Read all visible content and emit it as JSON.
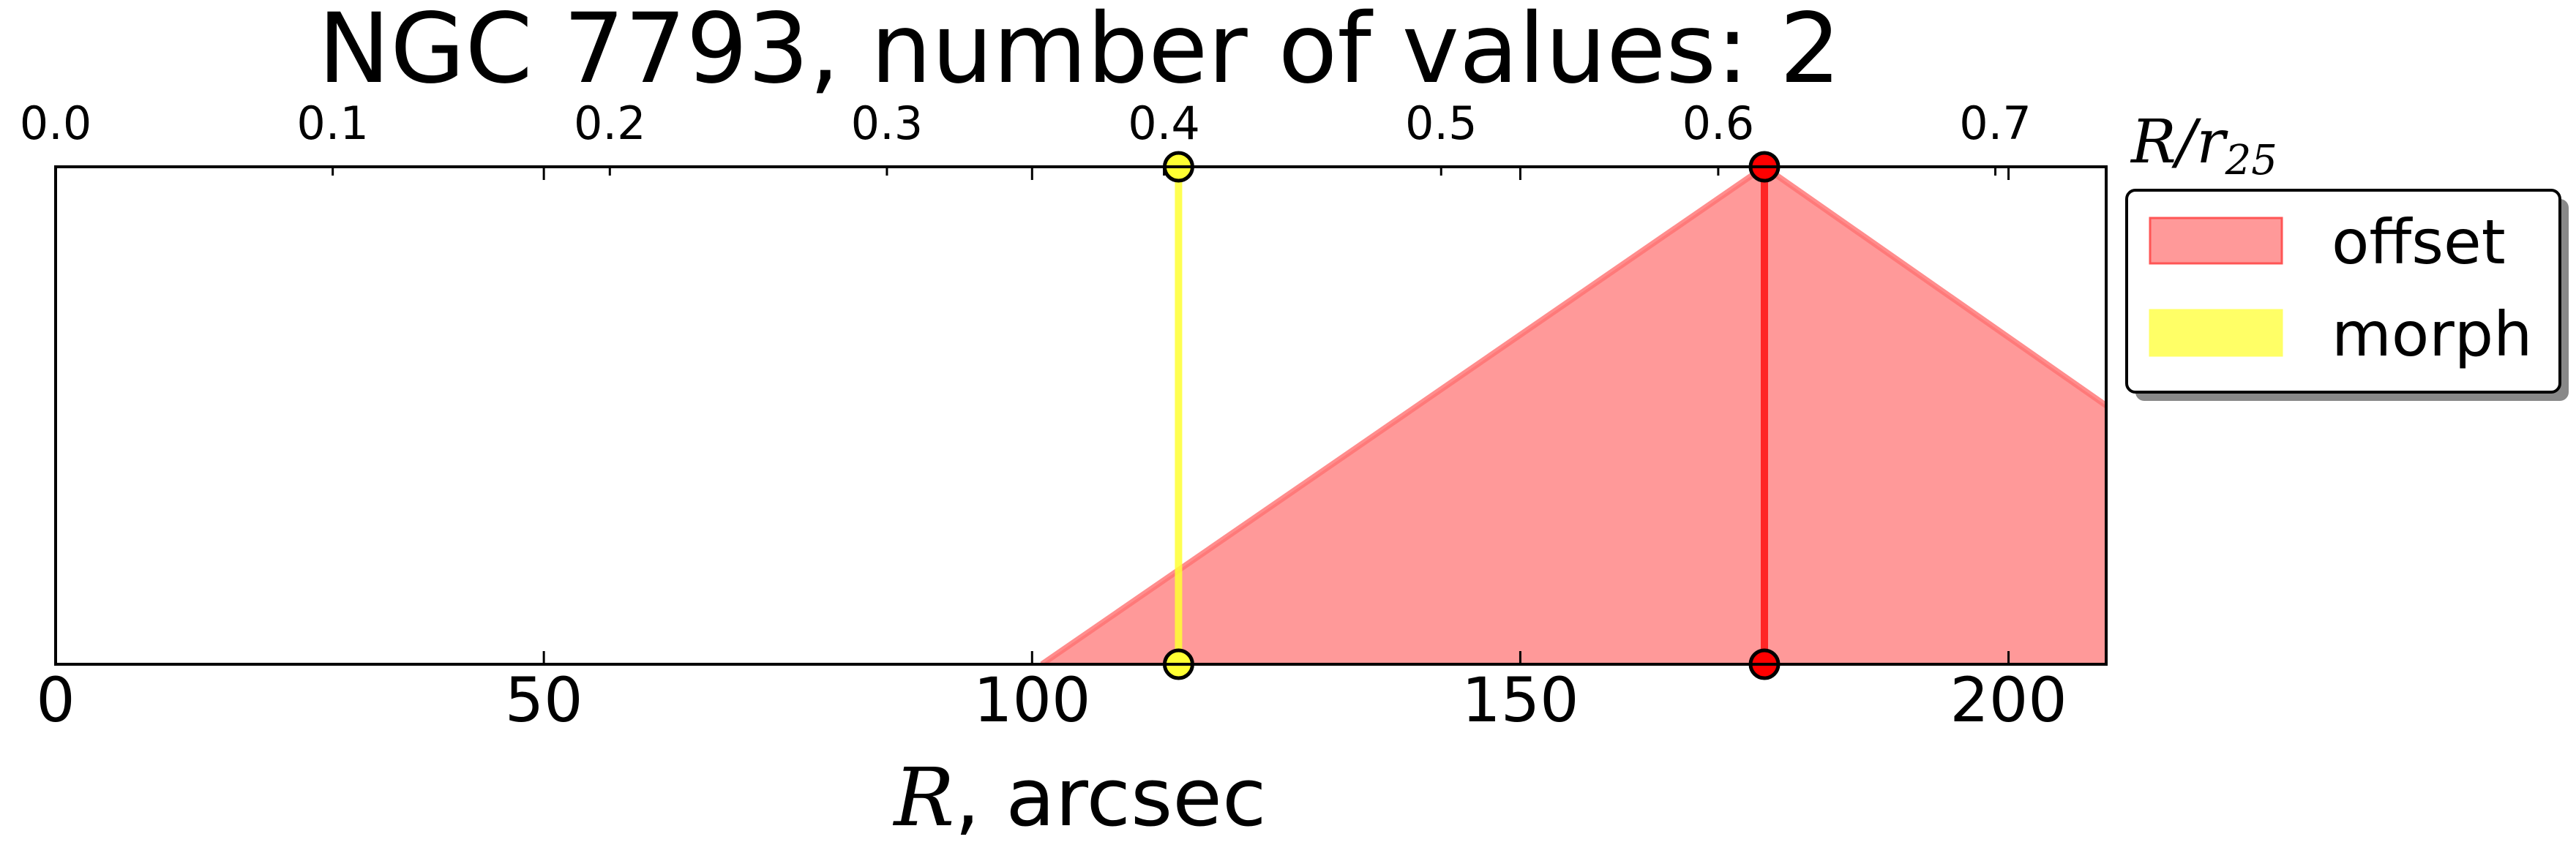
{
  "chart_data": {
    "type": "area",
    "title": "NGC 7793, number of values: 2",
    "xlabel_var": "R",
    "xlabel_unit": ", arcsec",
    "top_axis_label": "R/r",
    "top_axis_label_sub": "25",
    "xlim": [
      0,
      210
    ],
    "ylim": [
      0,
      1
    ],
    "top_xlim": [
      0,
      0.74
    ],
    "xticks": [
      "0",
      "50",
      "100",
      "150",
      "200"
    ],
    "xtick_values": [
      0,
      50,
      100,
      150,
      200
    ],
    "top_xticks": [
      "0.0",
      "0.1",
      "0.2",
      "0.3",
      "0.4",
      "0.5",
      "0.6",
      "0.7"
    ],
    "top_xtick_values": [
      0.0,
      0.1,
      0.2,
      0.3,
      0.4,
      0.5,
      0.6,
      0.7
    ],
    "series": [
      {
        "name": "offset",
        "color": "#ff0000",
        "fill_color": "#ff9999",
        "marker_x": 175,
        "area_x": [
          101,
          175,
          210
        ],
        "area_y": [
          0,
          1,
          0.52
        ]
      },
      {
        "name": "morph",
        "color": "#ffff33",
        "fill_color": "#ffff66",
        "marker_x": 115
      }
    ],
    "legend": {
      "position": "outside-right-top",
      "entries": [
        "offset",
        "morph"
      ]
    },
    "grid": false
  }
}
